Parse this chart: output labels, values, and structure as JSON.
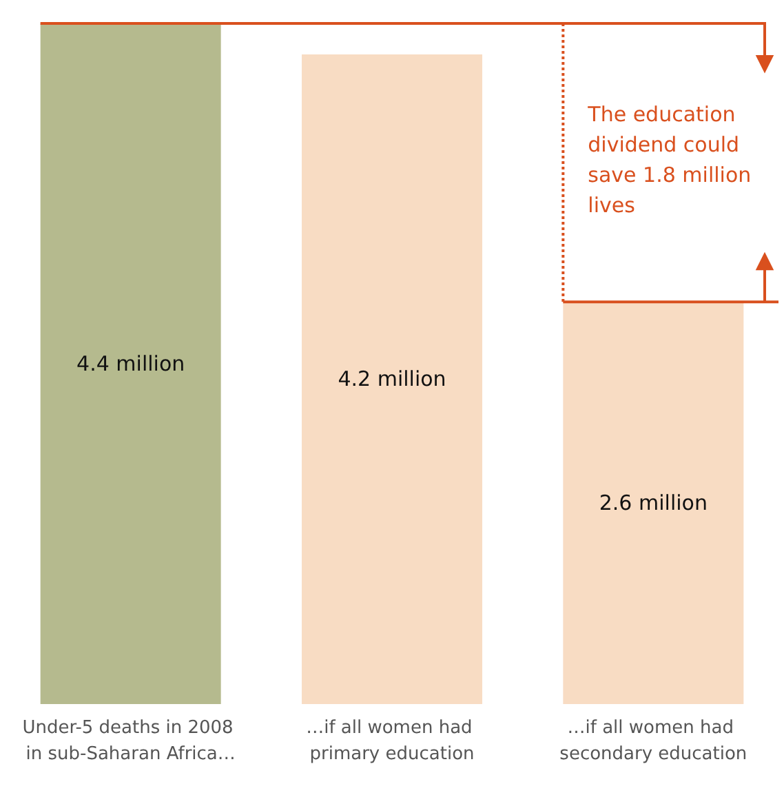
{
  "chart_data": {
    "type": "bar",
    "categories": [
      "Under-5 deaths in 2008 in sub-Saharan Africa…",
      "…if all women had primary education",
      "…if all women had secondary education"
    ],
    "values": [
      4.4,
      4.2,
      2.6
    ],
    "colors": [
      "#b5ba8e",
      "#f8dcc3",
      "#f8dcc3"
    ],
    "value_labels": [
      "4.4 million",
      "4.2 million",
      "2.6 million"
    ],
    "annotations": [
      "The education dividend could save 1.8 million lives"
    ]
  }
}
